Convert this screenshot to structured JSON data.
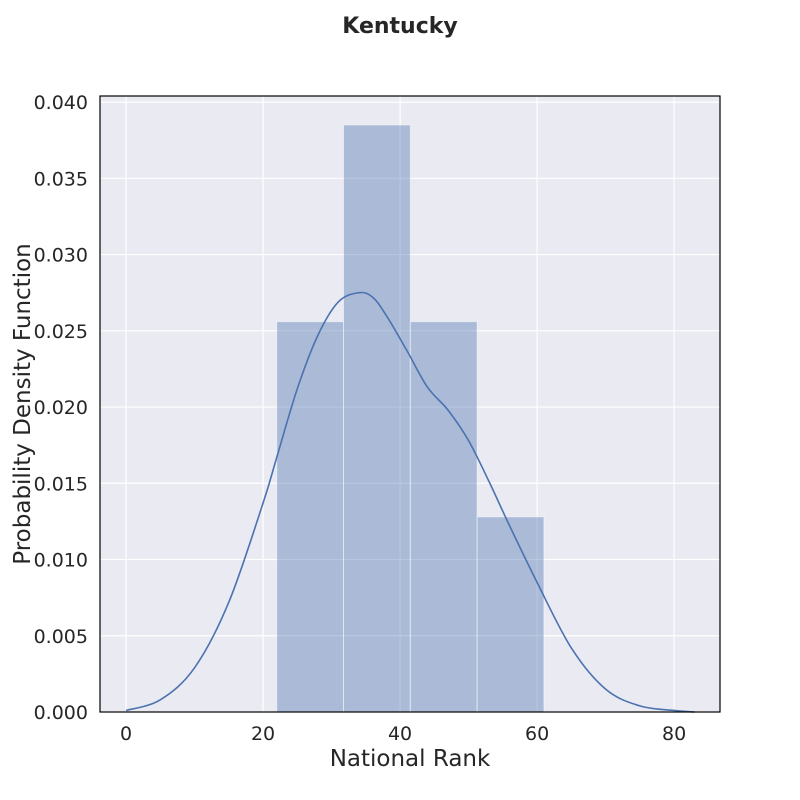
{
  "chart_data": {
    "type": "bar",
    "title": "Kentucky",
    "xlabel": "National Rank",
    "ylabel": "Probability Density Function",
    "xlim": [
      -3.8,
      86.7
    ],
    "ylim": [
      0,
      0.0404
    ],
    "xticks": [
      0,
      20,
      40,
      60,
      80
    ],
    "yticks": [
      0.0,
      0.005,
      0.01,
      0.015,
      0.02,
      0.025,
      0.03,
      0.035,
      0.04
    ],
    "ytick_labels": [
      "0.000",
      "0.005",
      "0.010",
      "0.015",
      "0.020",
      "0.025",
      "0.030",
      "0.035",
      "0.040"
    ],
    "grid": true,
    "histogram": {
      "bins": [
        {
          "x0": 22,
          "x1": 31.75,
          "density": 0.0256
        },
        {
          "x0": 31.75,
          "x1": 41.5,
          "density": 0.0385
        },
        {
          "x0": 41.5,
          "x1": 51.25,
          "density": 0.0256
        },
        {
          "x0": 51.25,
          "x1": 61,
          "density": 0.0128
        }
      ],
      "color": "#4c72b0"
    },
    "kde": {
      "color": "#4c72b0",
      "x": [
        0,
        5,
        10,
        15,
        20,
        22,
        25,
        28,
        31,
        34,
        36,
        38,
        41,
        44,
        47,
        50,
        53,
        56,
        60,
        65,
        70,
        75,
        80,
        83
      ],
      "y": [
        0.0001,
        0.0008,
        0.0029,
        0.0072,
        0.0137,
        0.0167,
        0.0212,
        0.0247,
        0.0269,
        0.0275,
        0.0272,
        0.026,
        0.0237,
        0.0213,
        0.0198,
        0.0178,
        0.0151,
        0.0122,
        0.0085,
        0.0042,
        0.0015,
        0.0004,
        0.0001,
        0.0
      ]
    },
    "colors": {
      "plot_background": "#eaeaf2",
      "grid": "#ffffff",
      "text": "#262626"
    }
  }
}
